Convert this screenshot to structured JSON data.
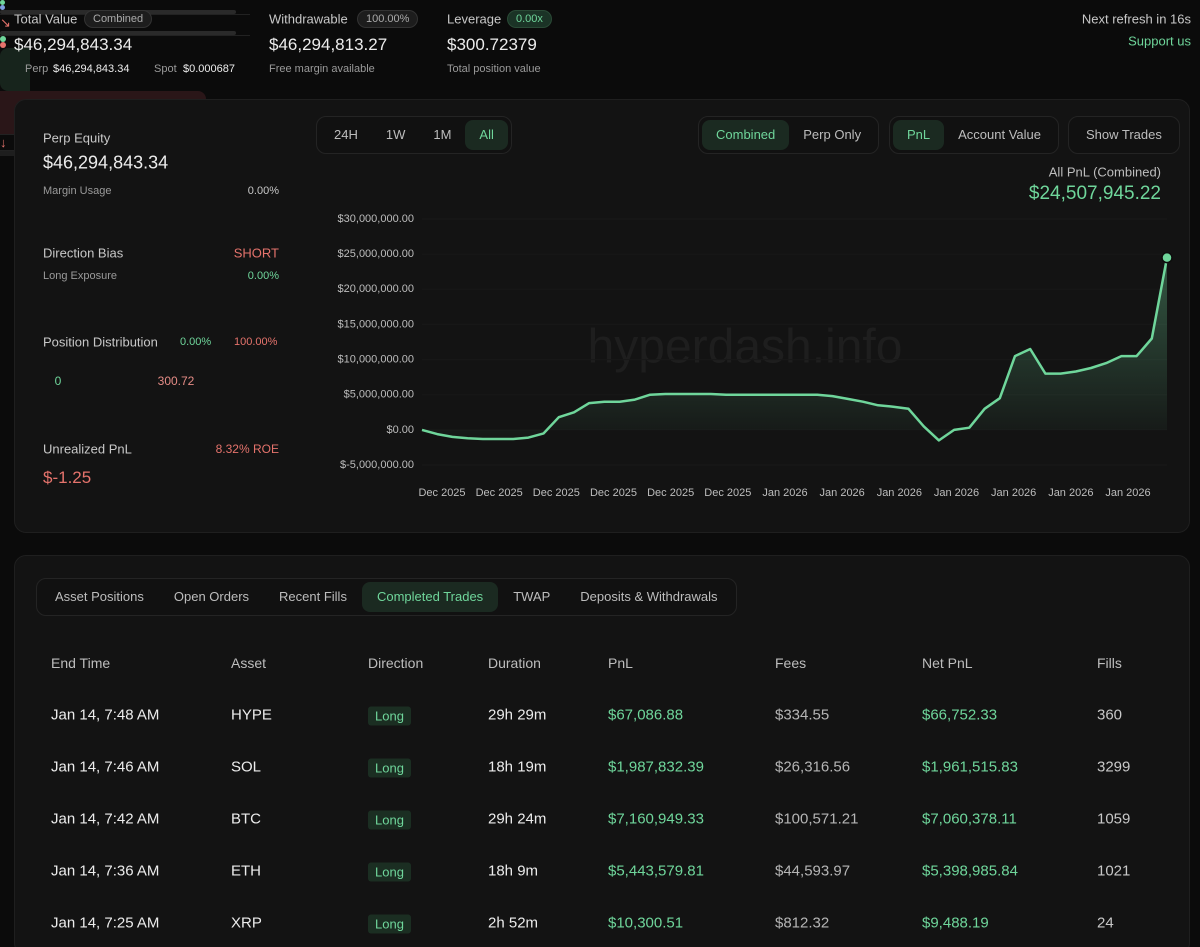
{
  "header": {
    "total_value": {
      "label": "Total Value",
      "badge": "Combined",
      "value": "$46,294,843.34",
      "perp_label": "Perp",
      "perp_value": "$46,294,843.34",
      "spot_label": "Spot",
      "spot_value": "$0.000687"
    },
    "withdrawable": {
      "label": "Withdrawable",
      "badge": "100.00%",
      "value": "$46,294,813.27",
      "note": "Free margin available"
    },
    "leverage": {
      "label": "Leverage",
      "badge": "0.00x",
      "value": "$300.72379",
      "note": "Total position value"
    },
    "refresh": "Next refresh in 16s",
    "support": "Support us"
  },
  "sidebar": {
    "perp_equity": {
      "label": "Perp Equity",
      "value": "$46,294,843.34",
      "margin_label": "Margin Usage",
      "margin_value": "0.00%"
    },
    "direction": {
      "label": "Direction Bias",
      "value": "SHORT",
      "exposure_label": "Long Exposure",
      "exposure_value": "0.00%"
    },
    "distribution": {
      "label": "Position Distribution",
      "long_pct": "0.00%",
      "short_pct": "100.00%",
      "long_value": "0",
      "short_value": "300.72"
    },
    "unrealized": {
      "label": "Unrealized PnL",
      "roe": "8.32% ROE",
      "value": "$-1.25"
    }
  },
  "controls": {
    "ranges": {
      "items": [
        "24H",
        "1W",
        "1M",
        "All"
      ],
      "active": 3
    },
    "modes": {
      "items": [
        "Combined",
        "Perp Only"
      ],
      "active": 0
    },
    "metrics": {
      "items": [
        "PnL",
        "Account Value"
      ],
      "active": 0
    },
    "show_trades": "Show Trades"
  },
  "chart_data": {
    "type": "line",
    "title": "All PnL (Combined)",
    "subtitle": "$24,507,945.22",
    "watermark": "hyperdash.info",
    "color": "#6fd69b",
    "xtick_labels": [
      "Dec 2025",
      "Dec 2025",
      "Dec 2025",
      "Dec 2025",
      "Dec 2025",
      "Dec 2025",
      "Jan 2026",
      "Jan 2026",
      "Jan 2026",
      "Jan 2026",
      "Jan 2026",
      "Jan 2026",
      "Jan 2026"
    ],
    "values": [
      0,
      -600000,
      -1000000,
      -1200000,
      -1300000,
      -1300000,
      -1300000,
      -1100000,
      -500000,
      1800000,
      2500000,
      3800000,
      4000000,
      4000000,
      4300000,
      5000000,
      5100000,
      5100000,
      5100000,
      5100000,
      5000000,
      5000000,
      5000000,
      5000000,
      5000000,
      5000000,
      5000000,
      4800000,
      4400000,
      4000000,
      3500000,
      3300000,
      3000000,
      500000,
      -1500000,
      0,
      300000,
      3000000,
      4500000,
      10500000,
      11500000,
      8000000,
      8000000,
      8300000,
      8800000,
      9500000,
      10500000,
      10500000,
      13000000,
      24507945.22
    ],
    "ylim": [
      -5000000,
      30000000
    ],
    "yticks": [
      {
        "value": -5000000,
        "label": "$-5,000,000.00"
      },
      {
        "value": 0,
        "label": "$0.00"
      },
      {
        "value": 5000000,
        "label": "$5,000,000.00"
      },
      {
        "value": 10000000,
        "label": "$10,000,000.00"
      },
      {
        "value": 15000000,
        "label": "$15,000,000.00"
      },
      {
        "value": 20000000,
        "label": "$20,000,000.00"
      },
      {
        "value": 25000000,
        "label": "$25,000,000.00"
      },
      {
        "value": 30000000,
        "label": "$30,000,000.00"
      }
    ]
  },
  "tabs": {
    "items": [
      "Asset Positions",
      "Open Orders",
      "Recent Fills",
      "Completed Trades",
      "TWAP",
      "Deposits & Withdrawals"
    ],
    "active": 3
  },
  "table": {
    "columns": [
      "End Time",
      "Asset",
      "Direction",
      "Duration",
      "PnL",
      "Fees",
      "Net PnL",
      "Fills"
    ],
    "rows": [
      [
        "Jan 14, 7:48 AM",
        "HYPE",
        "Long",
        "29h 29m",
        "$67,086.88",
        "$334.55",
        "$66,752.33",
        "360"
      ],
      [
        "Jan 14, 7:46 AM",
        "SOL",
        "Long",
        "18h 19m",
        "$1,987,832.39",
        "$26,316.56",
        "$1,961,515.83",
        "3299"
      ],
      [
        "Jan 14, 7:42 AM",
        "BTC",
        "Long",
        "29h 24m",
        "$7,160,949.33",
        "$100,571.21",
        "$7,060,378.11",
        "1059"
      ],
      [
        "Jan 14, 7:36 AM",
        "ETH",
        "Long",
        "18h 9m",
        "$5,443,579.81",
        "$44,593.97",
        "$5,398,985.84",
        "1021"
      ],
      [
        "Jan 14, 7:25 AM",
        "XRP",
        "Long",
        "2h 52m",
        "$10,300.51",
        "$812.32",
        "$9,488.19",
        "24"
      ]
    ]
  }
}
